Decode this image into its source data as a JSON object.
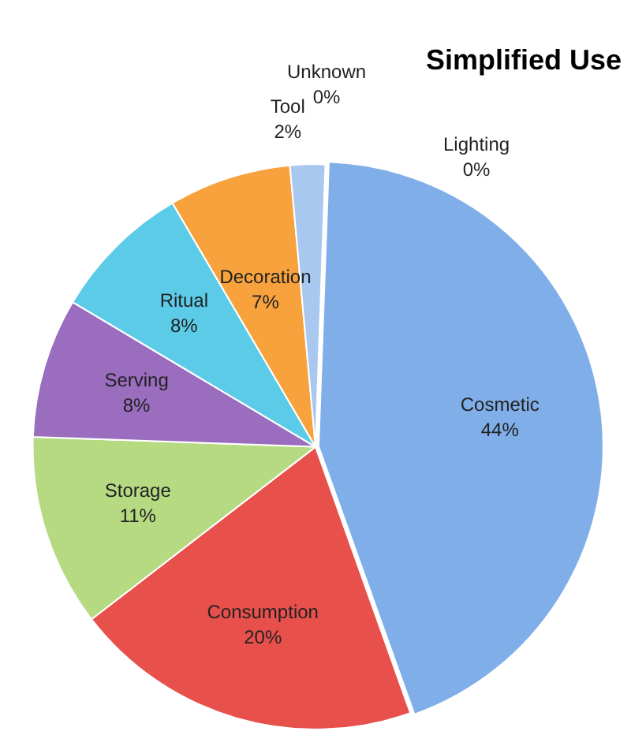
{
  "chart_data": {
    "type": "pie",
    "title": "Simplified Use",
    "categories": [
      "Cosmetic",
      "Consumption",
      "Storage",
      "Serving",
      "Ritual",
      "Decoration",
      "Tool",
      "Unknown",
      "Lighting"
    ],
    "values": [
      44,
      20,
      11,
      8,
      8,
      7,
      2,
      0,
      0
    ],
    "colors": [
      "#80aee8",
      "#e8504c",
      "#b5da82",
      "#9a6dbf",
      "#5ccbe8",
      "#f7a23c",
      "#a8c8f0",
      "#f4b860",
      "#e86a3c"
    ],
    "value_labels": [
      "44%",
      "20%",
      "11%",
      "8%",
      "8%",
      "7%",
      "2%",
      "0%",
      "0%"
    ],
    "legend": false
  }
}
